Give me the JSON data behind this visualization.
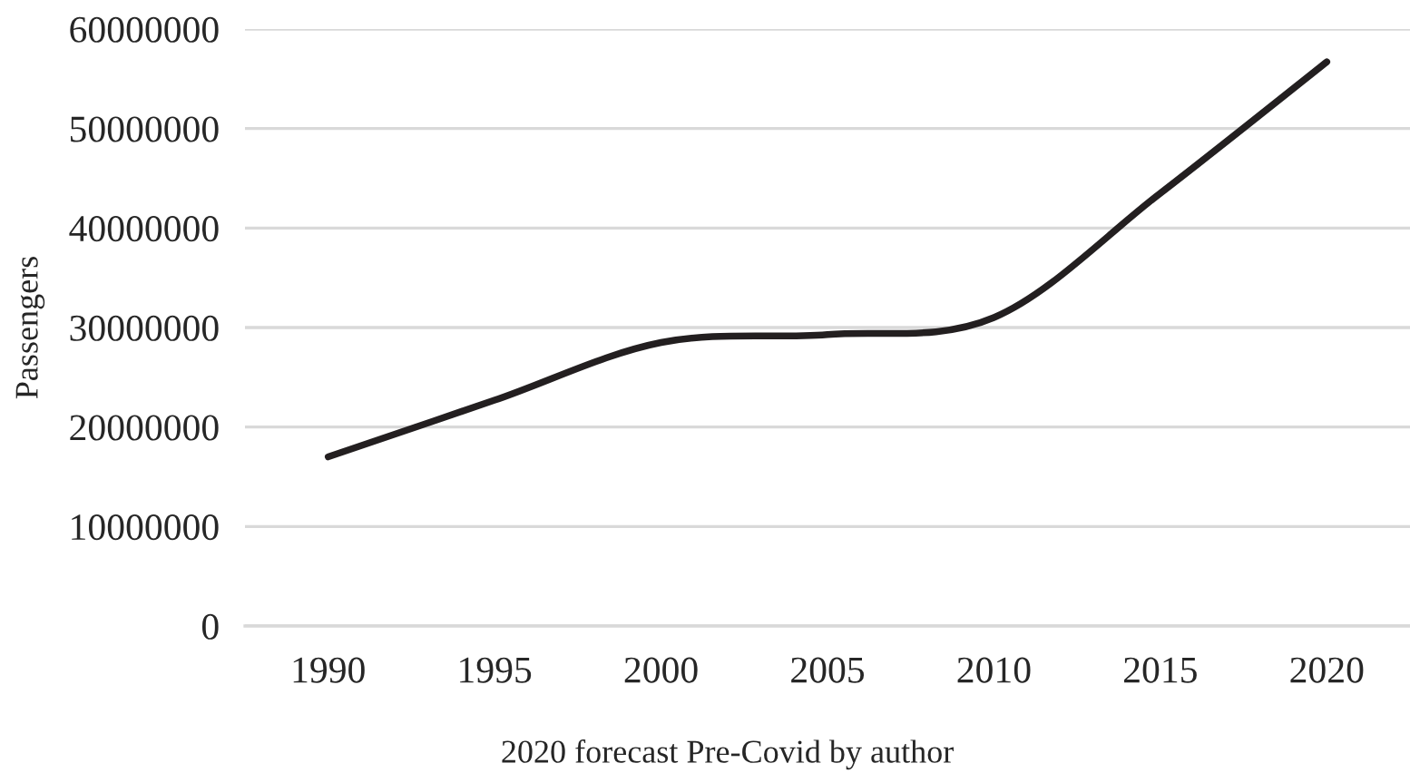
{
  "chart_data": {
    "type": "line",
    "categories": [
      "1990",
      "1995",
      "2000",
      "2005",
      "2010",
      "2015",
      "2020"
    ],
    "series": [
      {
        "color": "#231f20",
        "values": [
          17000000,
          22700000,
          28500000,
          29300000,
          31000000,
          43500000,
          56700000
        ]
      }
    ],
    "ylabel": "Passengers",
    "xlabel": "2020 forecast Pre-Covid by author",
    "ylim": [
      0,
      60000000
    ],
    "yticks": [
      0,
      10000000,
      20000000,
      30000000,
      40000000,
      50000000,
      60000000
    ],
    "grid": "y",
    "marker": "none",
    "line_style": "solid"
  }
}
